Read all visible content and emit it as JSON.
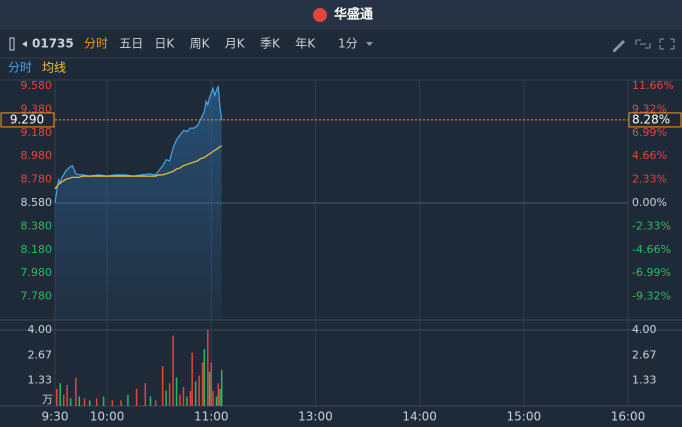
{
  "header": {
    "brand": "华盛通"
  },
  "toolbar": {
    "code": "01735",
    "tabs": [
      "分时",
      "五日",
      "日K",
      "周K",
      "月K",
      "季K",
      "年K"
    ],
    "active_tab": 0,
    "interval": "1分"
  },
  "chart_data": [
    {
      "type": "line",
      "xlim": [
        0,
        330
      ],
      "x": [
        0,
        1,
        2,
        3,
        4,
        5,
        6,
        8,
        10,
        12,
        14,
        16,
        20,
        25,
        30,
        35,
        40,
        45,
        50,
        55,
        58,
        60,
        62,
        64,
        66,
        68,
        70,
        72,
        74,
        76,
        78,
        80,
        82,
        84,
        86,
        87,
        88,
        89,
        90,
        91,
        92,
        93,
        94,
        95,
        96
      ],
      "series": [
        {
          "name": "分时",
          "color": "#4aa3e8",
          "values": [
            8.58,
            8.68,
            8.78,
            8.75,
            8.8,
            8.82,
            8.85,
            8.88,
            8.9,
            8.83,
            8.82,
            8.82,
            8.81,
            8.82,
            8.81,
            8.82,
            8.82,
            8.81,
            8.82,
            8.83,
            8.82,
            8.86,
            8.9,
            8.95,
            8.94,
            9.05,
            9.12,
            9.16,
            9.2,
            9.19,
            9.22,
            9.22,
            9.24,
            9.3,
            9.36,
            9.45,
            9.42,
            9.48,
            9.52,
            9.56,
            9.5,
            9.54,
            9.58,
            9.4,
            9.29
          ]
        },
        {
          "name": "均线",
          "color": "#f0c040",
          "values": [
            8.7,
            8.72,
            8.74,
            8.75,
            8.76,
            8.77,
            8.78,
            8.79,
            8.8,
            8.8,
            8.8,
            8.81,
            8.81,
            8.81,
            8.81,
            8.81,
            8.81,
            8.81,
            8.81,
            8.81,
            8.81,
            8.82,
            8.82,
            8.83,
            8.84,
            8.85,
            8.87,
            8.88,
            8.9,
            8.91,
            8.92,
            8.93,
            8.94,
            8.96,
            8.97,
            8.98,
            8.99,
            9.0,
            9.01,
            9.02,
            9.03,
            9.04,
            9.05,
            9.06,
            9.07
          ]
        }
      ],
      "ylim": [
        7.58,
        9.58
      ],
      "yticks": [
        {
          "value": 9.58,
          "label": "9.580"
        },
        {
          "value": 9.38,
          "label": "9.380"
        },
        {
          "value": 9.18,
          "label": "9.180"
        },
        {
          "value": 8.98,
          "label": "8.980"
        },
        {
          "value": 8.78,
          "label": "8.780"
        },
        {
          "value": 8.58,
          "label": "8.580"
        },
        {
          "value": 8.38,
          "label": "8.380"
        },
        {
          "value": 8.18,
          "label": "8.180"
        },
        {
          "value": 7.98,
          "label": "7.980"
        },
        {
          "value": 7.78,
          "label": "7.780"
        }
      ],
      "y2lim": [
        -11.66,
        11.66
      ],
      "y2ticks": [
        {
          "value": 11.66,
          "label": "11.66%"
        },
        {
          "value": 9.32,
          "label": "9.32%"
        },
        {
          "value": 6.99,
          "label": "6.99%"
        },
        {
          "value": 4.66,
          "label": "4.66%"
        },
        {
          "value": 2.33,
          "label": "2.33%"
        },
        {
          "value": 0,
          "label": "0.00%"
        },
        {
          "value": -2.33,
          "label": "-2.33%"
        },
        {
          "value": -4.66,
          "label": "-4.66%"
        },
        {
          "value": -6.99,
          "label": "-6.99%"
        },
        {
          "value": -9.32,
          "label": "-9.32%"
        }
      ],
      "last_price": {
        "value": 9.29,
        "label": "9.290"
      },
      "last_change": {
        "value": 8.28,
        "label": "8.28%"
      }
    },
    {
      "type": "bar",
      "unit": "万",
      "xlim": [
        0,
        330
      ],
      "xticks": [
        {
          "value": 0,
          "label": "9:30"
        },
        {
          "value": 30,
          "label": "10:00"
        },
        {
          "value": 90,
          "label": "11:00"
        },
        {
          "value": 150,
          "label": "13:00"
        },
        {
          "value": 210,
          "label": "14:00"
        },
        {
          "value": 270,
          "label": "15:00"
        },
        {
          "value": 330,
          "label": "16:00"
        }
      ],
      "x": [
        1,
        3,
        5,
        7,
        9,
        12,
        14,
        17,
        20,
        24,
        28,
        33,
        38,
        42,
        47,
        52,
        55,
        58,
        62,
        64,
        66,
        68,
        70,
        72,
        74,
        76,
        78,
        79,
        81,
        83,
        85,
        86,
        88,
        89,
        90,
        91,
        93,
        94,
        95,
        96
      ],
      "values": [
        0.9,
        1.2,
        0.6,
        1.1,
        0.4,
        1.5,
        0.5,
        0.4,
        0.3,
        0.4,
        0.5,
        0.3,
        0.3,
        0.6,
        0.9,
        1.2,
        0.5,
        0.3,
        2.1,
        0.8,
        1.2,
        3.7,
        1.5,
        0.6,
        1.0,
        0.5,
        0.8,
        2.8,
        1.3,
        1.6,
        2.3,
        3.0,
        4.0,
        1.8,
        2.3,
        0.8,
        0.5,
        1.2,
        0.9,
        1.9
      ],
      "colors": [
        "#e0463c",
        "#2fb864",
        "#e0463c",
        "#e0463c",
        "#2fb864",
        "#e0463c",
        "#2fb864",
        "#e0463c",
        "#2fb864",
        "#e0463c",
        "#2fb864",
        "#e0463c",
        "#e0463c",
        "#2fb864",
        "#e0463c",
        "#e0463c",
        "#2fb864",
        "#e0463c",
        "#e0463c",
        "#2fb864",
        "#e0463c",
        "#e0463c",
        "#2fb864",
        "#e0463c",
        "#e0463c",
        "#2fb864",
        "#e0463c",
        "#e0463c",
        "#2fb864",
        "#e0463c",
        "#e0463c",
        "#2fb864",
        "#e0463c",
        "#2fb864",
        "#e0463c",
        "#e0463c",
        "#2fb864",
        "#e0463c",
        "#2fb864",
        "#2fb864"
      ],
      "ylim": [
        0,
        4
      ],
      "yticks": [
        {
          "value": 4,
          "label": "4.00"
        },
        {
          "value": 2.67,
          "label": "2.67"
        },
        {
          "value": 1.33,
          "label": "1.33"
        }
      ]
    }
  ]
}
